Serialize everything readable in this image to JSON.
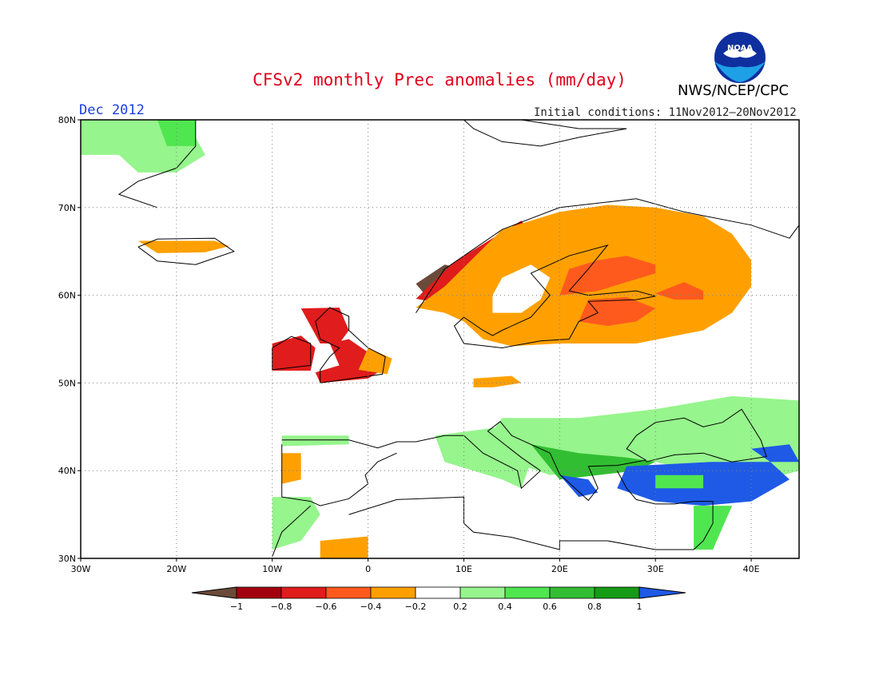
{
  "header": {
    "title": "CFSv2 monthly Prec anomalies (mm/day)",
    "month": "Dec 2012",
    "initial_conditions": "Initial conditions: 11Nov2012–20Nov2012",
    "agency": "NWS/NCEP/CPC",
    "logo_text": "NOAA"
  },
  "map": {
    "lon_range": [
      -30,
      45
    ],
    "lat_range": [
      30,
      80
    ],
    "lat_ticks": [
      "80N",
      "70N",
      "60N",
      "50N",
      "40N",
      "30N"
    ],
    "lon_ticks": [
      "30W",
      "20W",
      "10W",
      "0",
      "10E",
      "20E",
      "30E",
      "40E"
    ],
    "grid": "dotted"
  },
  "legend": {
    "labels": [
      "−1",
      "−0.8",
      "−0.6",
      "−0.4",
      "−0.2",
      "0.2",
      "0.4",
      "0.6",
      "0.8",
      "1"
    ],
    "colors": [
      "#6b4a3a",
      "#a3000f",
      "#e01c1c",
      "#ff5a1e",
      "#ffa000",
      "#ffffff",
      "#96f58c",
      "#50e650",
      "#32be32",
      "#169b16",
      "#1e5ae6"
    ]
  },
  "anomaly_regions": [
    {
      "name": "greenland",
      "class": 0.3,
      "pts": [
        [
          -30,
          80
        ],
        [
          -18,
          80
        ],
        [
          -18,
          78
        ],
        [
          -17,
          76
        ],
        [
          -20,
          74
        ],
        [
          -24,
          74
        ],
        [
          -26,
          76
        ],
        [
          -30,
          76
        ]
      ]
    },
    {
      "name": "greenland-core",
      "class": 0.5,
      "pts": [
        [
          -22,
          80
        ],
        [
          -18,
          80
        ],
        [
          -18,
          77
        ],
        [
          -21,
          77
        ]
      ]
    },
    {
      "name": "iceland",
      "class": -0.3,
      "pts": [
        [
          -24,
          66.2
        ],
        [
          -20,
          66.2
        ],
        [
          -16,
          66.2
        ],
        [
          -14.5,
          65.6
        ],
        [
          -17,
          64.9
        ],
        [
          -22,
          64.8
        ]
      ]
    },
    {
      "name": "ireland",
      "class": -0.7,
      "pts": [
        [
          -10,
          51.4
        ],
        [
          -6,
          51.4
        ],
        [
          -5.5,
          54
        ],
        [
          -7,
          55.4
        ],
        [
          -10,
          54.5
        ]
      ]
    },
    {
      "name": "scotland",
      "class": -0.7,
      "pts": [
        [
          -7,
          58.5
        ],
        [
          -3,
          58.6
        ],
        [
          -2,
          56
        ],
        [
          -3,
          54.5
        ],
        [
          -5,
          54.5
        ],
        [
          -6,
          56.5
        ]
      ]
    },
    {
      "name": "england",
      "class": -0.6,
      "pts": [
        [
          -5,
          50
        ],
        [
          0,
          50.5
        ],
        [
          1.5,
          51.5
        ],
        [
          0,
          53.5
        ],
        [
          -2,
          55
        ],
        [
          -4,
          54.5
        ],
        [
          -3,
          52
        ],
        [
          -5.5,
          51.2
        ]
      ]
    },
    {
      "name": "england-east",
      "class": -0.3,
      "pts": [
        [
          -1,
          51.5
        ],
        [
          2,
          51
        ],
        [
          2.5,
          52.8
        ],
        [
          0,
          54
        ]
      ]
    },
    {
      "name": "norway-coast",
      "class": -1.1,
      "pts": [
        [
          5,
          61.3
        ],
        [
          8,
          63.5
        ],
        [
          10,
          63
        ],
        [
          8,
          61.5
        ],
        [
          6,
          60
        ]
      ]
    },
    {
      "name": "norway-west",
      "class": -0.7,
      "pts": [
        [
          5,
          59.6
        ],
        [
          9,
          63.8
        ],
        [
          13,
          66.5
        ],
        [
          16,
          68.5
        ],
        [
          17,
          67
        ],
        [
          13,
          64.5
        ],
        [
          9,
          61
        ],
        [
          7,
          59.2
        ]
      ]
    },
    {
      "name": "scandinavia",
      "class": -0.3,
      "pts": [
        [
          5,
          58.6
        ],
        [
          8,
          61
        ],
        [
          14,
          67.5
        ],
        [
          20,
          69.5
        ],
        [
          25,
          70.3
        ],
        [
          30,
          70
        ],
        [
          35,
          69
        ],
        [
          38,
          67
        ],
        [
          40,
          64
        ],
        [
          40,
          61
        ],
        [
          38,
          58
        ],
        [
          35,
          56
        ],
        [
          28,
          54.5
        ],
        [
          20,
          54.5
        ],
        [
          15,
          54.2
        ],
        [
          12,
          55
        ],
        [
          10,
          57
        ],
        [
          8,
          58
        ]
      ]
    },
    {
      "name": "sweden-inner",
      "class": 0.0,
      "pts": [
        [
          13,
          58
        ],
        [
          16,
          58
        ],
        [
          18,
          59.5
        ],
        [
          19,
          62
        ],
        [
          17,
          63.5
        ],
        [
          14,
          62
        ],
        [
          13,
          60
        ]
      ]
    },
    {
      "name": "finland-west",
      "class": -0.5,
      "pts": [
        [
          20,
          60
        ],
        [
          24,
          60.5
        ],
        [
          27,
          61.5
        ],
        [
          30,
          62.5
        ],
        [
          30,
          63.5
        ],
        [
          27,
          64.5
        ],
        [
          24,
          64
        ],
        [
          21,
          63
        ]
      ]
    },
    {
      "name": "baltic-east",
      "class": -0.5,
      "pts": [
        [
          23,
          59.5
        ],
        [
          27,
          59.8
        ],
        [
          30,
          58.5
        ],
        [
          28,
          57
        ],
        [
          25,
          56.5
        ],
        [
          22,
          57
        ]
      ]
    },
    {
      "name": "russia-nw",
      "class": -0.5,
      "pts": [
        [
          30,
          60.2
        ],
        [
          33,
          61.5
        ],
        [
          35,
          60.5
        ],
        [
          35,
          59.5
        ],
        [
          32,
          59.5
        ]
      ]
    },
    {
      "name": "germany",
      "class": -0.3,
      "pts": [
        [
          11,
          50.5
        ],
        [
          15,
          50.8
        ],
        [
          16,
          50
        ],
        [
          13,
          49.5
        ],
        [
          11,
          49.5
        ]
      ]
    },
    {
      "name": "iberia-west",
      "class": -0.3,
      "pts": [
        [
          -9,
          42
        ],
        [
          -7,
          42
        ],
        [
          -7,
          39
        ],
        [
          -9,
          38.5
        ]
      ]
    },
    {
      "name": "iberia-north",
      "class": 0.3,
      "pts": [
        [
          -9,
          44
        ],
        [
          -2,
          44
        ],
        [
          -2,
          43
        ],
        [
          -9,
          42.8
        ]
      ]
    },
    {
      "name": "iberia-south",
      "class": 0.3,
      "pts": [
        [
          -10,
          37
        ],
        [
          -6,
          37
        ],
        [
          -5,
          35
        ],
        [
          -7,
          32
        ],
        [
          -10,
          31
        ]
      ]
    },
    {
      "name": "morocco",
      "class": -0.3,
      "pts": [
        [
          -5,
          32
        ],
        [
          0,
          32.5
        ],
        [
          0,
          30
        ],
        [
          -5,
          30
        ]
      ]
    },
    {
      "name": "balkans",
      "class": 0.3,
      "pts": [
        [
          14,
          46
        ],
        [
          22,
          46
        ],
        [
          30,
          47
        ],
        [
          38,
          48.5
        ],
        [
          45,
          48
        ],
        [
          45,
          40
        ],
        [
          40,
          38.5
        ],
        [
          30,
          41
        ],
        [
          24,
          40
        ],
        [
          19,
          39.5
        ],
        [
          15,
          41
        ],
        [
          12,
          43
        ]
      ]
    },
    {
      "name": "balkans-core",
      "class": 0.6,
      "pts": [
        [
          17,
          43
        ],
        [
          22,
          42
        ],
        [
          27,
          41.5
        ],
        [
          30,
          41
        ],
        [
          28,
          40
        ],
        [
          24,
          39.5
        ],
        [
          20,
          39
        ]
      ]
    },
    {
      "name": "greece",
      "class": 1.1,
      "pts": [
        [
          20,
          39.5
        ],
        [
          23,
          39
        ],
        [
          24,
          37.5
        ],
        [
          22,
          37
        ]
      ]
    },
    {
      "name": "turkey",
      "class": 1.1,
      "pts": [
        [
          27,
          40.5
        ],
        [
          36,
          41
        ],
        [
          42,
          41
        ],
        [
          44,
          39
        ],
        [
          40,
          36.5
        ],
        [
          35,
          36
        ],
        [
          30,
          36.5
        ],
        [
          26,
          38
        ]
      ]
    },
    {
      "name": "turkey-inner",
      "class": 0.5,
      "pts": [
        [
          30,
          39.5
        ],
        [
          35,
          39.5
        ],
        [
          35,
          38
        ],
        [
          30,
          38
        ]
      ]
    },
    {
      "name": "caucasus",
      "class": 1.1,
      "pts": [
        [
          40,
          42.5
        ],
        [
          44,
          43
        ],
        [
          45,
          41
        ],
        [
          42,
          41
        ]
      ]
    },
    {
      "name": "levant",
      "class": 0.5,
      "pts": [
        [
          34,
          36
        ],
        [
          38,
          36
        ],
        [
          36,
          31
        ],
        [
          34,
          31
        ]
      ]
    },
    {
      "name": "italy",
      "class": 0.3,
      "pts": [
        [
          7,
          44
        ],
        [
          14,
          45
        ],
        [
          17,
          41
        ],
        [
          16,
          38
        ],
        [
          14,
          39
        ],
        [
          8,
          41
        ]
      ]
    }
  ]
}
